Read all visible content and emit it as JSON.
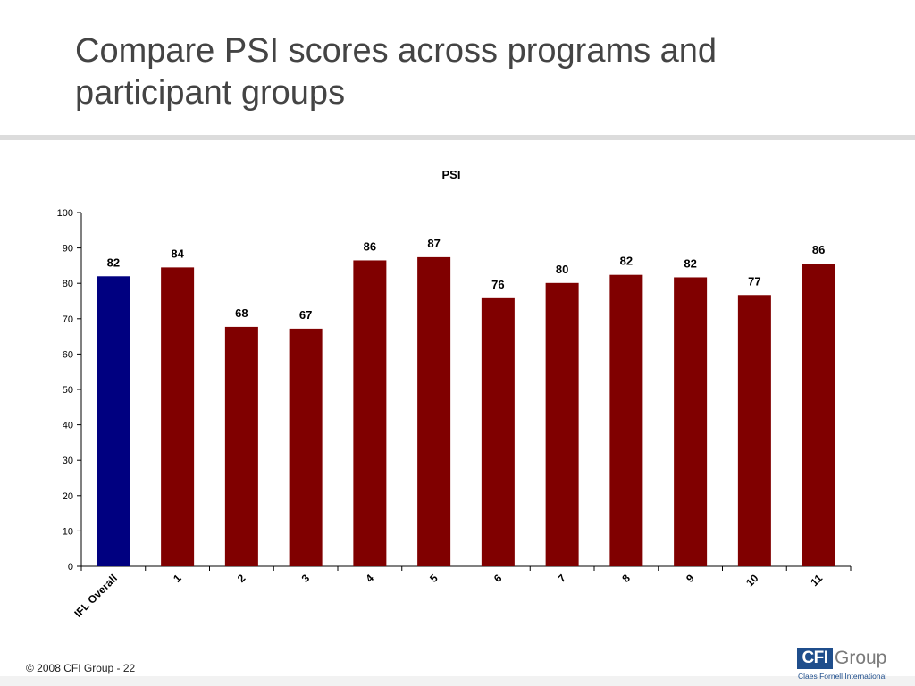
{
  "slide": {
    "title": "Compare PSI scores across programs and participant groups",
    "footer": "© 2008 CFI Group - 22"
  },
  "logo": {
    "mark": "CFI",
    "word": "Group",
    "tagline": "Claes Fornell International",
    "color": "#1f4e8c"
  },
  "chart_data": {
    "type": "bar",
    "title": "PSI",
    "xlabel": "",
    "ylabel": "",
    "categories": [
      "IFL Overall",
      "1",
      "2",
      "3",
      "4",
      "5",
      "6",
      "7",
      "8",
      "9",
      "10",
      "11"
    ],
    "values": [
      82,
      84.5,
      67.7,
      67.2,
      86.5,
      87.4,
      75.8,
      80.1,
      82.4,
      81.7,
      76.7,
      85.6
    ],
    "data_labels": [
      "82",
      "84",
      "68",
      "67",
      "86",
      "87",
      "76",
      "80",
      "82",
      "82",
      "77",
      "86"
    ],
    "bar_colors": [
      "#000080",
      "#800000",
      "#800000",
      "#800000",
      "#800000",
      "#800000",
      "#800000",
      "#800000",
      "#800000",
      "#800000",
      "#800000",
      "#800000"
    ],
    "ylim": [
      0,
      100
    ],
    "yticks": [
      0,
      10,
      20,
      30,
      40,
      50,
      60,
      70,
      80,
      90,
      100
    ],
    "grid": false,
    "legend": "none"
  }
}
